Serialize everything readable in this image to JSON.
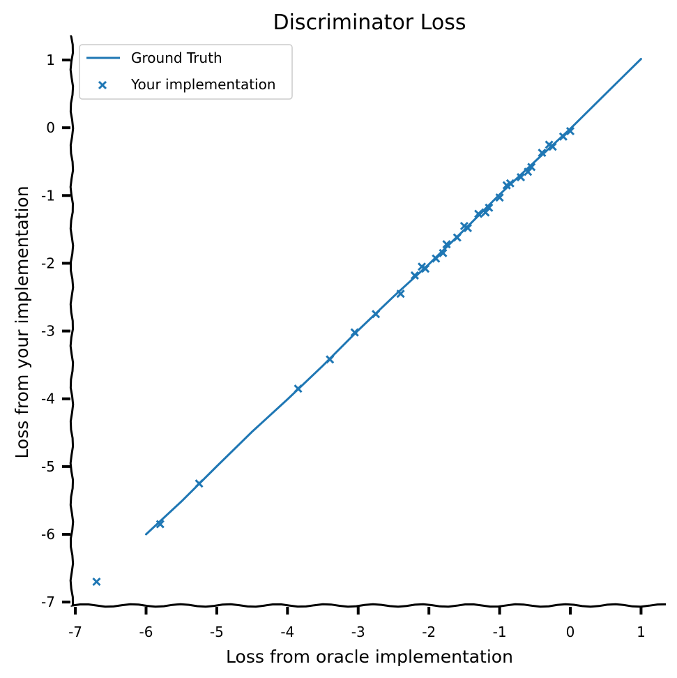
{
  "chart_data": {
    "type": "scatter",
    "title": "Discriminator Loss",
    "xlabel": "Loss from oracle implementation",
    "ylabel": "Loss from your implementation",
    "xlim": [
      -7.05,
      1.4
    ],
    "ylim": [
      -7.05,
      1.35
    ],
    "xticks": [
      -7,
      -6,
      -5,
      -4,
      -3,
      -2,
      -1,
      0,
      1
    ],
    "yticks": [
      -7,
      -6,
      -5,
      -4,
      -3,
      -2,
      -1,
      0,
      1
    ],
    "legend_position": "top-left",
    "grid": false,
    "series": [
      {
        "name": "Ground Truth",
        "kind": "line",
        "color": "#1f77b4",
        "x": [
          -6.0,
          -5.5,
          -5.0,
          -4.5,
          -4.0,
          -3.5,
          -3.0,
          -2.5,
          -2.0,
          -1.5,
          -1.0,
          -0.5,
          0.0,
          0.5,
          1.0
        ],
        "y": [
          -6.0,
          -5.5,
          -5.0,
          -4.5,
          -4.0,
          -3.5,
          -3.0,
          -2.5,
          -2.0,
          -1.5,
          -1.0,
          -0.5,
          0.0,
          0.5,
          1.0
        ]
      },
      {
        "name": "Your implementation",
        "kind": "scatter",
        "marker": "x",
        "color": "#1f77b4",
        "x": [
          -6.7,
          -5.8,
          -5.25,
          -3.85,
          -3.4,
          -3.05,
          -2.75,
          -2.4,
          -2.2,
          -2.05,
          -1.9,
          -1.75,
          -1.6,
          -1.45,
          -1.3,
          -1.15,
          -1.0,
          -0.85,
          -0.7,
          -0.55,
          -0.4,
          -0.25,
          -0.1,
          -2.1,
          -1.8,
          -1.5,
          -1.2,
          -0.9,
          -0.6,
          -0.3,
          0.0
        ],
        "y": [
          -6.7,
          -5.85,
          -5.25,
          -3.85,
          -3.42,
          -3.02,
          -2.75,
          -2.45,
          -2.18,
          -2.08,
          -1.93,
          -1.72,
          -1.62,
          -1.48,
          -1.27,
          -1.18,
          -1.03,
          -0.82,
          -0.73,
          -0.58,
          -0.37,
          -0.28,
          -0.13,
          -2.05,
          -1.85,
          -1.45,
          -1.25,
          -0.85,
          -0.65,
          -0.25,
          -0.05
        ]
      }
    ]
  }
}
